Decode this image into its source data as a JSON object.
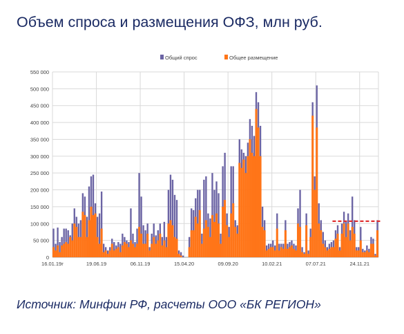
{
  "header": {
    "title": "Объем спроса и размещения ОФЗ, млн руб."
  },
  "footer": {
    "source": "Источник: Минфин РФ, расчеты ООО «БК РЕГИОН»"
  },
  "colors": {
    "demand": "#6b64a4",
    "placement": "#ff7518",
    "dashed_line": "#e03030",
    "grid": "#d9d9d9",
    "axis_text": "#404040"
  },
  "chart_data": {
    "type": "bar",
    "title": "",
    "xlabel": "",
    "ylabel": "",
    "ylim": [
      0,
      550000
    ],
    "y_ticks": [
      "0",
      "50 000",
      "100 000",
      "150 000",
      "200 000",
      "250 000",
      "300 000",
      "350 000",
      "400 000",
      "450 000",
      "500 000",
      "550 000"
    ],
    "x_ticks": [
      "16.01.19г",
      "19.06.19",
      "06.11.19",
      "15.04.20",
      "09.09.20",
      "10.02.21",
      "07.07.21",
      "24.11.21"
    ],
    "x_tick_index": [
      0,
      21,
      42,
      63,
      84,
      105,
      126,
      147
    ],
    "grid": true,
    "legend_position": "top",
    "reference_line": {
      "value": 107000,
      "from_index": 134,
      "to_index": 157,
      "style": "dashed"
    },
    "series": [
      {
        "name": "Общий спрос",
        "values": [
          85000,
          40000,
          88000,
          45000,
          60000,
          85000,
          85000,
          80000,
          65000,
          100000,
          145000,
          120000,
          100000,
          110000,
          190000,
          180000,
          120000,
          210000,
          240000,
          245000,
          160000,
          120000,
          130000,
          195000,
          40000,
          30000,
          20000,
          30000,
          55000,
          45000,
          35000,
          45000,
          40000,
          70000,
          60000,
          50000,
          45000,
          145000,
          70000,
          45000,
          85000,
          250000,
          180000,
          95000,
          80000,
          100000,
          30000,
          70000,
          100000,
          65000,
          80000,
          100000,
          60000,
          105000,
          60000,
          200000,
          245000,
          230000,
          185000,
          170000,
          20000,
          15000,
          5000,
          0,
          0,
          60000,
          145000,
          140000,
          175000,
          200000,
          200000,
          70000,
          230000,
          240000,
          130000,
          115000,
          250000,
          200000,
          225000,
          190000,
          70000,
          270000,
          310000,
          130000,
          90000,
          270000,
          270000,
          110000,
          95000,
          350000,
          320000,
          310000,
          300000,
          340000,
          410000,
          390000,
          360000,
          490000,
          460000,
          390000,
          150000,
          110000,
          35000,
          40000,
          40000,
          50000,
          35000,
          130000,
          40000,
          40000,
          40000,
          110000,
          40000,
          45000,
          50000,
          40000,
          35000,
          145000,
          200000,
          30000,
          15000,
          130000,
          20000,
          85000,
          460000,
          240000,
          510000,
          160000,
          110000,
          75000,
          50000,
          30000,
          40000,
          45000,
          50000,
          80000,
          95000,
          30000,
          100000,
          135000,
          105000,
          130000,
          80000,
          180000,
          110000,
          30000,
          30000,
          90000,
          25000,
          20000,
          35000,
          25000,
          60000,
          55000,
          10000,
          110000
        ],
        "color": "#6b64a4"
      },
      {
        "name": "Общее размещение",
        "values": [
          30000,
          20000,
          35000,
          15000,
          35000,
          40000,
          45000,
          40000,
          60000,
          50000,
          100000,
          90000,
          60000,
          60000,
          135000,
          125000,
          60000,
          110000,
          150000,
          125000,
          130000,
          60000,
          40000,
          85000,
          15000,
          20000,
          10000,
          20000,
          40000,
          20000,
          25000,
          30000,
          15000,
          35000,
          45000,
          40000,
          30000,
          50000,
          40000,
          30000,
          40000,
          90000,
          70000,
          40000,
          40000,
          70000,
          20000,
          40000,
          60000,
          40000,
          50000,
          70000,
          35000,
          50000,
          30000,
          100000,
          110000,
          95000,
          60000,
          55000,
          10000,
          5000,
          0,
          0,
          0,
          30000,
          80000,
          80000,
          120000,
          100000,
          140000,
          40000,
          85000,
          110000,
          90000,
          60000,
          125000,
          105000,
          130000,
          100000,
          40000,
          150000,
          170000,
          95000,
          60000,
          130000,
          160000,
          90000,
          70000,
          280000,
          265000,
          290000,
          250000,
          300000,
          350000,
          310000,
          300000,
          440000,
          385000,
          300000,
          90000,
          80000,
          20000,
          25000,
          30000,
          30000,
          20000,
          85000,
          20000,
          30000,
          25000,
          80000,
          25000,
          30000,
          35000,
          25000,
          20000,
          100000,
          90000,
          15000,
          10000,
          95000,
          10000,
          60000,
          420000,
          200000,
          385000,
          100000,
          80000,
          40000,
          30000,
          20000,
          25000,
          30000,
          30000,
          55000,
          70000,
          20000,
          70000,
          100000,
          60000,
          100000,
          50000,
          90000,
          70000,
          20000,
          20000,
          50000,
          15000,
          15000,
          20000,
          15000,
          40000,
          40000,
          5000,
          80000
        ],
        "color": "#ff7518"
      }
    ]
  }
}
